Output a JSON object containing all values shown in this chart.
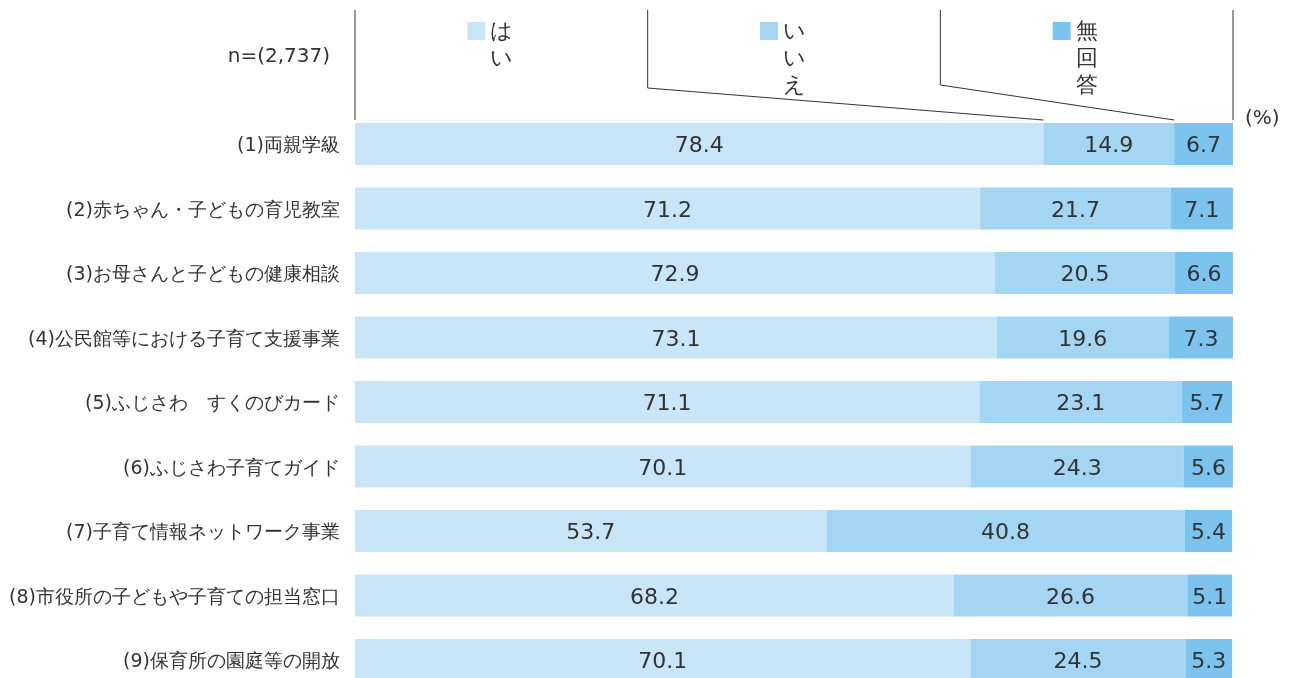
{
  "chart_data": {
    "type": "bar",
    "orientation": "horizontal",
    "stacked": true,
    "data_labels": true,
    "legend": "top",
    "xlim": [
      0,
      100
    ],
    "categories": [
      "(1)両親学級",
      "(2)赤ちゃん・子どもの育児教室",
      "(3)お母さんと子どもの健康相談",
      "(4)公民館等における子育て支援事業",
      "(5)ふじさわ　すくのびカード",
      "(6)ふじさわ子育てガイド",
      "(7)子育て情報ネットワーク事業",
      "(8)市役所の子どもや子育ての担当窓口",
      "(9)保育所の園庭等の開放"
    ],
    "series": [
      {
        "name": "はい",
        "color": "#c9e6f8",
        "values": [
          78.4,
          71.2,
          72.9,
          73.1,
          71.1,
          70.1,
          53.7,
          68.2,
          70.1
        ]
      },
      {
        "name": "いいえ",
        "color": "#a4d6f4",
        "values": [
          14.9,
          21.7,
          20.5,
          19.6,
          23.1,
          24.3,
          40.8,
          26.6,
          24.5
        ]
      },
      {
        "name": "無回答",
        "color": "#7cc3ee",
        "values": [
          6.7,
          7.1,
          6.6,
          7.3,
          5.7,
          5.6,
          5.4,
          5.1,
          5.3
        ]
      }
    ],
    "annotations": [
      "n=(2,737)",
      "(%)"
    ]
  }
}
